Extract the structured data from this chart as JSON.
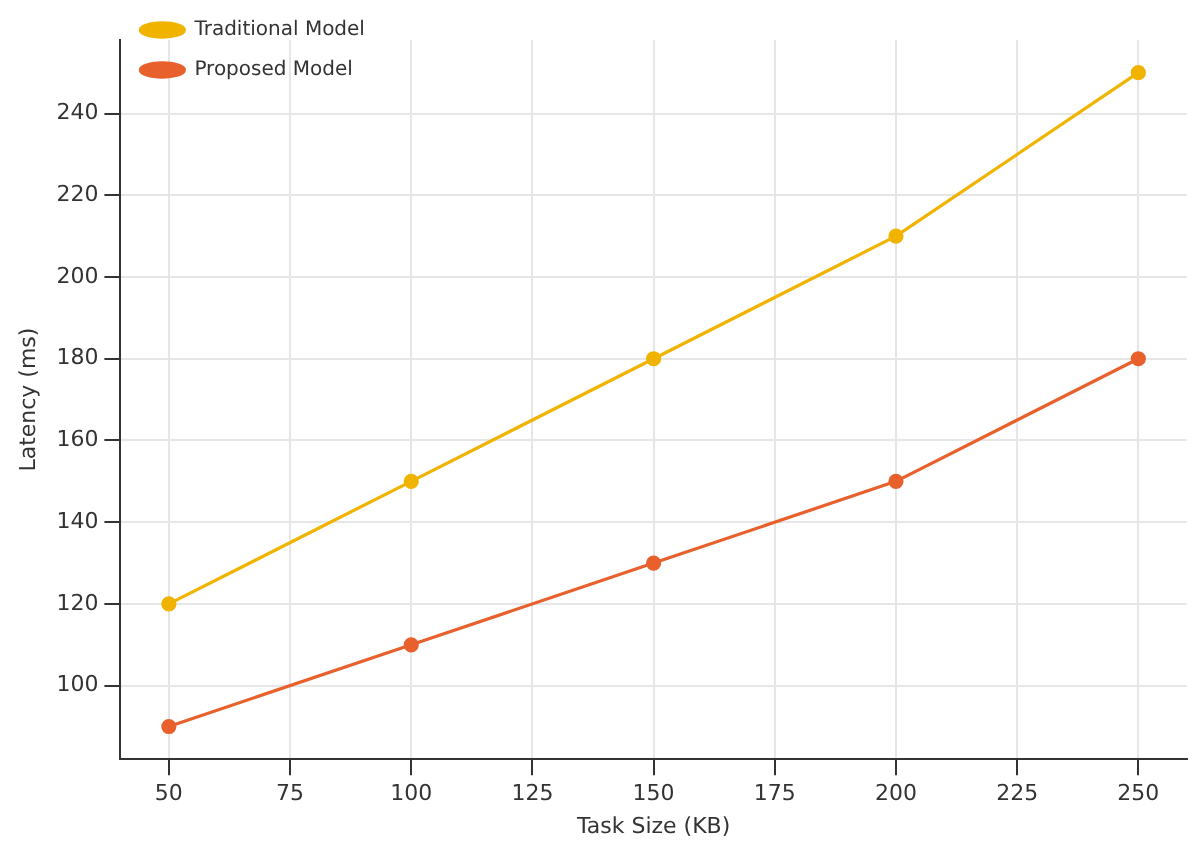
{
  "chart_data": {
    "type": "line",
    "xlabel": "Task Size (KB)",
    "ylabel": "Latency (ms)",
    "x": [
      50,
      100,
      150,
      200,
      250
    ],
    "series": [
      {
        "name": "Traditional Model",
        "color": "#f0b400",
        "values": [
          120,
          150,
          180,
          210,
          250
        ]
      },
      {
        "name": "Proposed Model",
        "color": "#e8602c",
        "values": [
          90,
          110,
          130,
          150,
          180
        ]
      }
    ],
    "xlim": [
      40,
      260
    ],
    "xticks": [
      50,
      75,
      100,
      125,
      150,
      175,
      200,
      225,
      250
    ],
    "ylim": [
      82,
      258
    ],
    "yticks": [
      100,
      120,
      140,
      160,
      180,
      200,
      220,
      240
    ],
    "grid": true,
    "legend": "top left",
    "marker": "circle",
    "line_style": "solid"
  }
}
